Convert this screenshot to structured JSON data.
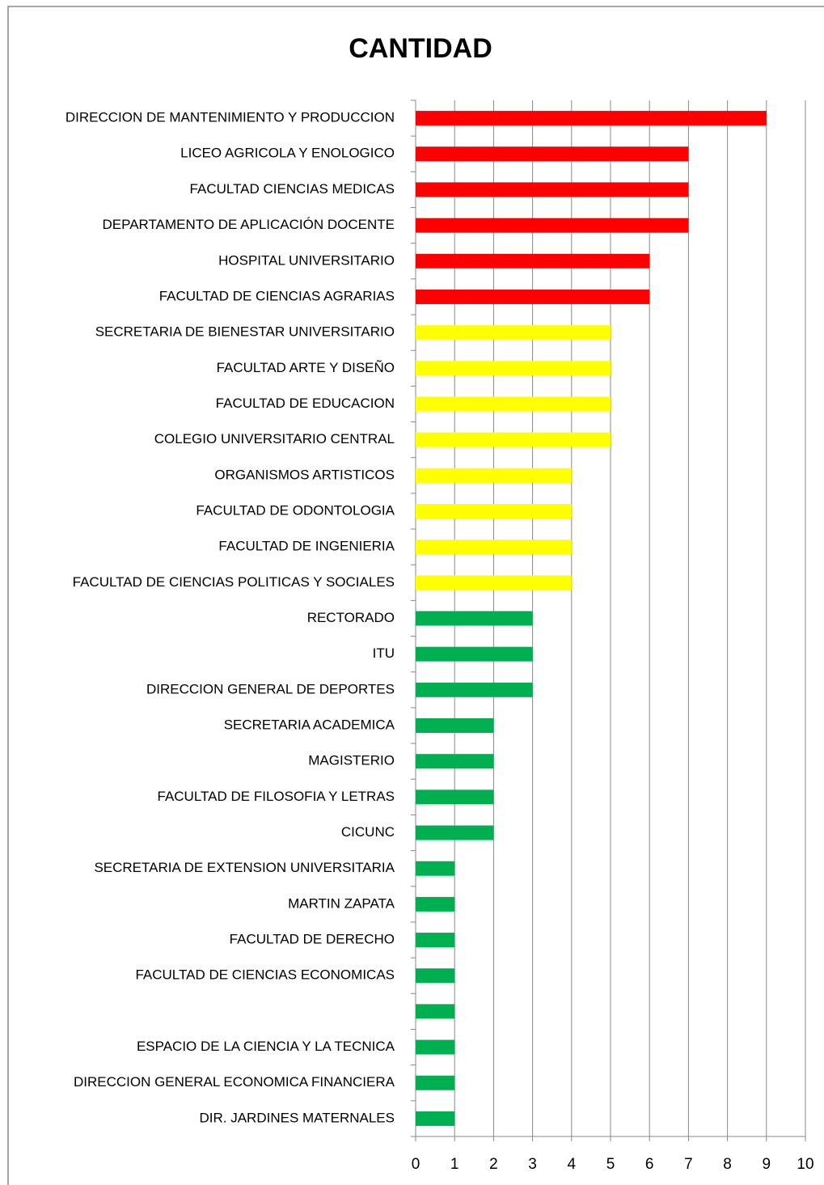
{
  "chart_data": {
    "type": "barh",
    "title": "CANTIDAD",
    "categories": [
      "DIRECCION DE MANTENIMIENTO Y PRODUCCION",
      "LICEO AGRICOLA Y ENOLOGICO",
      "FACULTAD CIENCIAS MEDICAS",
      "DEPARTAMENTO DE APLICACIÓN DOCENTE",
      "HOSPITAL UNIVERSITARIO",
      "FACULTAD DE CIENCIAS AGRARIAS",
      "SECRETARIA DE BIENESTAR UNIVERSITARIO",
      "FACULTAD ARTE Y DISEÑO",
      "FACULTAD DE EDUCACION",
      "COLEGIO UNIVERSITARIO CENTRAL",
      "ORGANISMOS ARTISTICOS",
      "FACULTAD DE ODONTOLOGIA",
      "FACULTAD DE INGENIERIA",
      "FACULTAD DE CIENCIAS POLITICAS Y SOCIALES",
      "RECTORADO",
      "ITU",
      "DIRECCION GENERAL DE DEPORTES",
      "SECRETARIA ACADEMICA",
      "MAGISTERIO",
      "FACULTAD DE FILOSOFIA Y LETRAS",
      "CICUNC",
      "SECRETARIA DE EXTENSION UNIVERSITARIA",
      "MARTIN ZAPATA",
      "FACULTAD DE DERECHO",
      "FACULTAD DE CIENCIAS ECONOMICAS",
      null,
      "ESPACIO DE LA CIENCIA Y LA TECNICA",
      "DIRECCION GENERAL ECONOMICA FINANCIERA",
      "DIR. JARDINES MATERNALES"
    ],
    "values": [
      9,
      7,
      7,
      7,
      6,
      6,
      5,
      5,
      5,
      5,
      4,
      4,
      4,
      4,
      3,
      3,
      3,
      2,
      2,
      2,
      2,
      1,
      1,
      1,
      1,
      1,
      1,
      1,
      1
    ],
    "colors": [
      "#ff0000",
      "#ff0000",
      "#ff0000",
      "#ff0000",
      "#ff0000",
      "#ff0000",
      "#ffff00",
      "#ffff00",
      "#ffff00",
      "#ffff00",
      "#ffff00",
      "#ffff00",
      "#ffff00",
      "#ffff00",
      "#00b050",
      "#00b050",
      "#00b050",
      "#00b050",
      "#00b050",
      "#00b050",
      "#00b050",
      "#00b050",
      "#00b050",
      "#00b050",
      "#00b050",
      "#00b050",
      "#00b050",
      "#00b050",
      "#00b050"
    ],
    "xlim": [
      0,
      10
    ],
    "xticks": [
      0,
      1,
      2,
      3,
      4,
      5,
      6,
      7,
      8,
      9,
      10
    ],
    "grid": true
  }
}
